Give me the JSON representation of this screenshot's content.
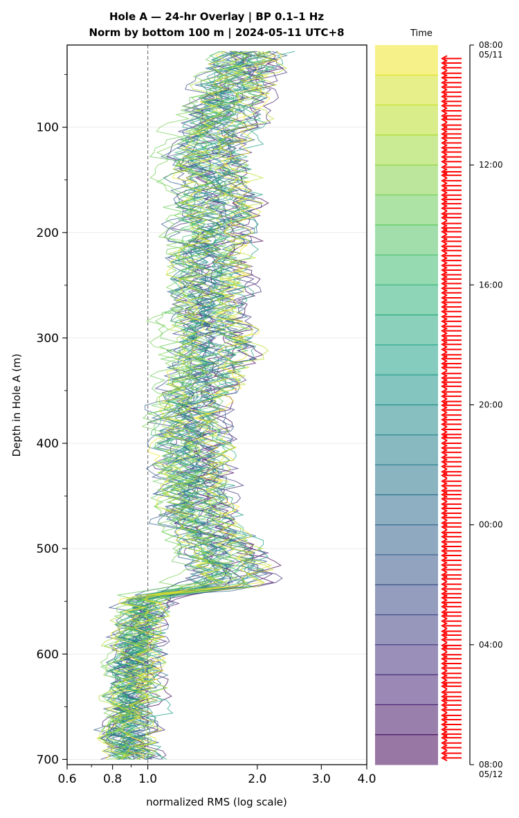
{
  "chart_data": {
    "type": "line",
    "title_line1": "Hole A — 24-hr Overlay  |  BP 0.1–1 Hz",
    "title_line2": "Norm by bottom 100 m  |  2024-05-11 UTC+8",
    "xlabel": "normalized RMS  (log scale)",
    "ylabel": "Depth in Hole A (m)",
    "x_scale": "log",
    "xlim": [
      0.6,
      4.0
    ],
    "ylim": [
      705,
      22
    ],
    "y_inverted": true,
    "x_ticks": [
      "0.6",
      "0.8",
      "1.0",
      "2.0",
      "3.0",
      "4.0"
    ],
    "x_tick_values": [
      0.6,
      0.8,
      1.0,
      2.0,
      3.0,
      4.0
    ],
    "y_ticks": [
      "100",
      "200",
      "300",
      "400",
      "500",
      "600",
      "700"
    ],
    "y_tick_values": [
      100,
      200,
      300,
      400,
      500,
      600,
      700
    ],
    "reference_line": {
      "x": 1.0,
      "style": "dashed"
    },
    "grid": "horizontal",
    "colormap": "viridis",
    "num_series": 40,
    "depth_profile": {
      "depth": [
        28,
        60,
        100,
        135,
        160,
        200,
        245,
        280,
        310,
        350,
        370,
        400,
        440,
        470,
        500,
        520,
        535,
        545,
        560,
        600,
        640,
        670,
        700
      ],
      "median_rms": [
        1.9,
        1.7,
        1.55,
        1.45,
        1.55,
        1.5,
        1.45,
        1.45,
        1.5,
        1.35,
        1.3,
        1.3,
        1.35,
        1.35,
        1.55,
        1.7,
        1.6,
        1.0,
        0.98,
        0.92,
        0.9,
        0.88,
        0.9
      ],
      "spread": [
        0.45,
        0.45,
        0.5,
        0.5,
        0.55,
        0.5,
        0.5,
        0.5,
        0.55,
        0.45,
        0.45,
        0.45,
        0.45,
        0.45,
        0.5,
        0.6,
        0.55,
        0.25,
        0.25,
        0.25,
        0.25,
        0.25,
        0.25
      ]
    },
    "colorbar": {
      "title": "Time",
      "ticks": [
        {
          "line1": "08:00",
          "line2": "05/11"
        },
        {
          "line1": "12:00",
          "line2": ""
        },
        {
          "line1": "16:00",
          "line2": ""
        },
        {
          "line1": "20:00",
          "line2": ""
        },
        {
          "line1": "00:00",
          "line2": ""
        },
        {
          "line1": "04:00",
          "line2": ""
        },
        {
          "line1": "08:00",
          "line2": "05/12"
        }
      ],
      "tick_hours": [
        0,
        4,
        8,
        12,
        16,
        20,
        24
      ],
      "bands": 24,
      "marker_color": "#ff0000",
      "marker_count": 150
    }
  }
}
